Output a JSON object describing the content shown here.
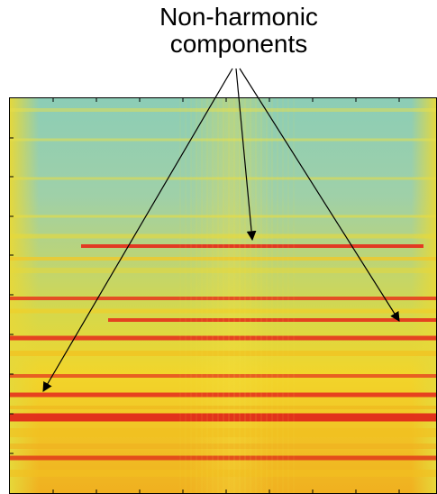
{
  "annotation": {
    "line1": "Non-harmonic",
    "line2": "components"
  },
  "colors": {
    "background": "#ffffff",
    "low": "#7fc7b0",
    "mid": "#f2d72a",
    "high": "#e8321e",
    "frame": "#000000"
  },
  "spectrogram": {
    "type": "heatmap",
    "colormap": "parula-like",
    "highlighted_bands": 3
  }
}
